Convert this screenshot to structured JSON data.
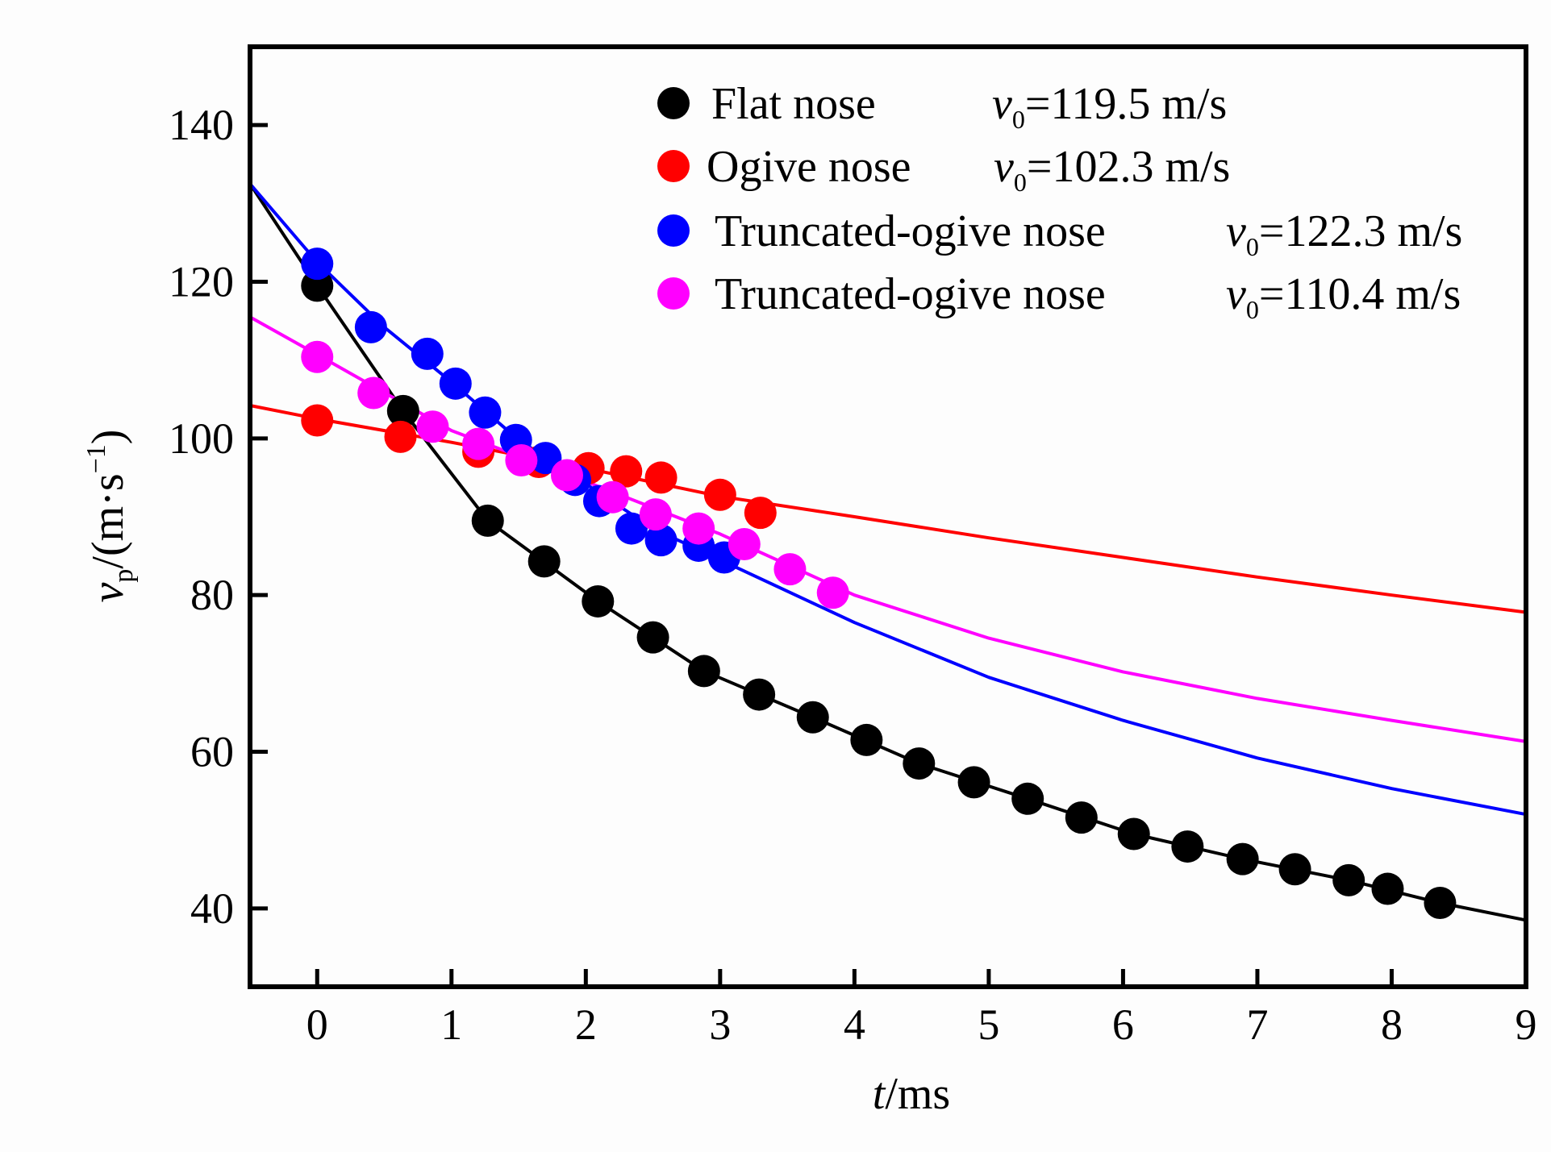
{
  "chart_data": {
    "type": "line",
    "title": "",
    "xlabel_italic": "t",
    "xlabel_rest": "/ms",
    "ylabel_italic": "v",
    "ylabel_sub": "p",
    "ylabel_rest": "/(m·s",
    "ylabel_sup": "−1",
    "ylabel_close": ")",
    "xlim": [
      -0.5,
      9
    ],
    "ylim": [
      30,
      150
    ],
    "xticks": [
      0,
      1,
      2,
      3,
      4,
      5,
      6,
      7,
      8,
      9
    ],
    "yticks": [
      40,
      60,
      80,
      100,
      120,
      140
    ],
    "grid": false,
    "legend_position": "top-right",
    "series": [
      {
        "name": "Flat nose",
        "v0_label": "=119.5 m/s",
        "color": "#000000",
        "points": [
          [
            0,
            119.5
          ],
          [
            0.64,
            103.5
          ],
          [
            1.27,
            89.5
          ],
          [
            1.69,
            84.3
          ],
          [
            2.09,
            79.2
          ],
          [
            2.5,
            74.6
          ],
          [
            2.88,
            70.3
          ],
          [
            3.29,
            67.3
          ],
          [
            3.69,
            64.4
          ],
          [
            4.09,
            61.5
          ],
          [
            4.48,
            58.5
          ],
          [
            4.89,
            56.1
          ],
          [
            5.29,
            54.0
          ],
          [
            5.69,
            51.6
          ],
          [
            6.08,
            49.5
          ],
          [
            6.48,
            47.9
          ],
          [
            6.89,
            46.3
          ],
          [
            7.28,
            45.0
          ],
          [
            7.68,
            43.6
          ],
          [
            7.97,
            42.5
          ],
          [
            8.36,
            40.7
          ]
        ],
        "fit": [
          [
            -0.5,
            132.5
          ],
          [
            0,
            119.5
          ],
          [
            0.64,
            103.5
          ],
          [
            1.27,
            89.5
          ],
          [
            2.09,
            79.2
          ],
          [
            2.88,
            70.3
          ],
          [
            3.69,
            64.4
          ],
          [
            4.48,
            58.5
          ],
          [
            5.29,
            54.0
          ],
          [
            6.08,
            49.5
          ],
          [
            6.89,
            46.3
          ],
          [
            7.68,
            43.6
          ],
          [
            8.36,
            40.7
          ],
          [
            9,
            38.5
          ]
        ]
      },
      {
        "name": "Ogive nose",
        "v0_label": "=102.3 m/s",
        "color": "#ff0000",
        "points": [
          [
            0,
            102.3
          ],
          [
            0.62,
            100.2
          ],
          [
            1.2,
            98.3
          ],
          [
            1.65,
            97.0
          ],
          [
            2.02,
            96.2
          ],
          [
            2.3,
            95.8
          ],
          [
            2.56,
            95.0
          ],
          [
            3.0,
            92.8
          ],
          [
            3.3,
            90.5
          ]
        ],
        "fit": [
          [
            -0.5,
            104.2
          ],
          [
            0,
            102.5
          ],
          [
            1,
            99.5
          ],
          [
            2,
            96.2
          ],
          [
            3,
            92.6
          ],
          [
            4,
            90.0
          ],
          [
            5,
            87.3
          ],
          [
            6,
            84.8
          ],
          [
            7,
            82.3
          ],
          [
            8,
            80.0
          ],
          [
            9,
            77.8
          ]
        ]
      },
      {
        "name": "Truncated-ogive nose",
        "v0_label": "=122.3 m/s",
        "color": "#0000ff",
        "points": [
          [
            0,
            122.3
          ],
          [
            0.4,
            114.2
          ],
          [
            0.82,
            110.8
          ],
          [
            1.03,
            107.0
          ],
          [
            1.25,
            103.3
          ],
          [
            1.48,
            99.8
          ],
          [
            1.7,
            97.5
          ],
          [
            1.92,
            94.7
          ],
          [
            2.1,
            92.0
          ],
          [
            2.34,
            88.5
          ],
          [
            2.56,
            87.0
          ],
          [
            2.84,
            86.3
          ],
          [
            3.03,
            84.8
          ]
        ],
        "fit": [
          [
            -0.5,
            132.5
          ],
          [
            0,
            122.5
          ],
          [
            0.5,
            114.2
          ],
          [
            1,
            107.2
          ],
          [
            1.5,
            99.8
          ],
          [
            2,
            94.2
          ],
          [
            2.5,
            88.5
          ],
          [
            3,
            84.5
          ],
          [
            4,
            76.5
          ],
          [
            5,
            69.5
          ],
          [
            6,
            64.0
          ],
          [
            7,
            59.2
          ],
          [
            8,
            55.3
          ],
          [
            9,
            52.0
          ]
        ]
      },
      {
        "name": "Truncated-ogive nose",
        "v0_label": "=110.4 m/s",
        "color": "#ff00ff",
        "points": [
          [
            0,
            110.4
          ],
          [
            0.42,
            105.8
          ],
          [
            0.86,
            101.5
          ],
          [
            1.2,
            99.3
          ],
          [
            1.52,
            97.2
          ],
          [
            1.86,
            95.3
          ],
          [
            2.2,
            92.5
          ],
          [
            2.52,
            90.3
          ],
          [
            2.84,
            88.5
          ],
          [
            3.18,
            86.5
          ],
          [
            3.52,
            83.3
          ],
          [
            3.84,
            80.3
          ]
        ],
        "fit": [
          [
            -0.5,
            115.5
          ],
          [
            0,
            110.7
          ],
          [
            1,
            101.0
          ],
          [
            2,
            94.5
          ],
          [
            3,
            87.8
          ],
          [
            4,
            80.0
          ],
          [
            5,
            74.5
          ],
          [
            6,
            70.2
          ],
          [
            7,
            66.8
          ],
          [
            8,
            64.0
          ],
          [
            9,
            61.3
          ]
        ]
      }
    ]
  }
}
